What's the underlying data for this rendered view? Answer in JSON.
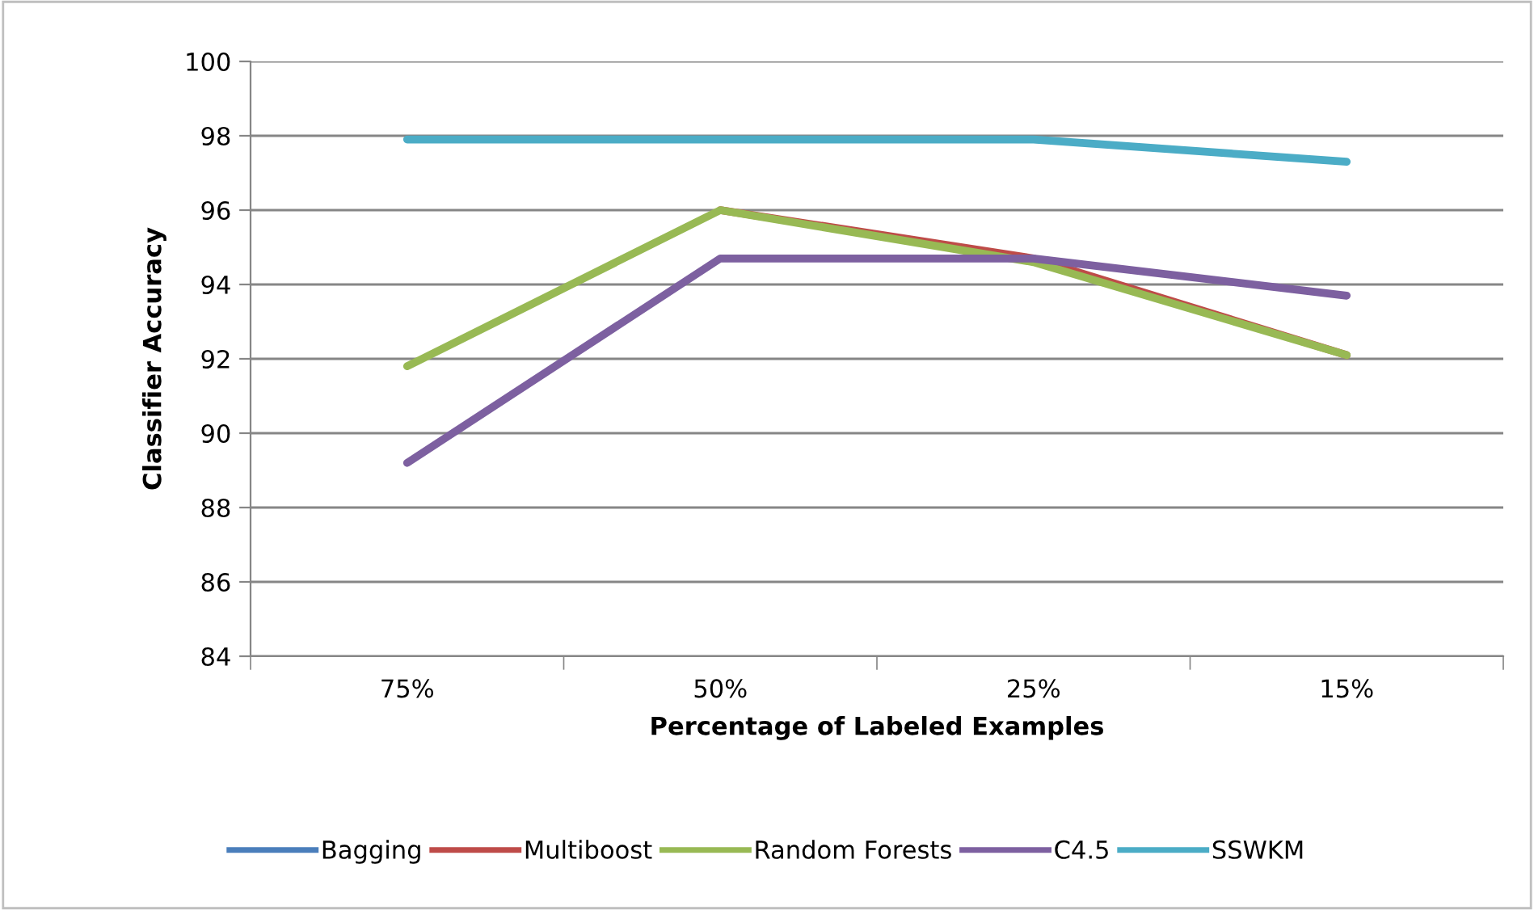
{
  "chart_data": {
    "type": "line",
    "xlabel": "Percentage of Labeled Examples",
    "ylabel": "Classifier Accuracy",
    "categories": [
      "75%",
      "50%",
      "25%",
      "15%"
    ],
    "series": [
      {
        "name": "Bagging",
        "color": "#4a7ebb",
        "values": [
          null,
          null,
          null,
          null
        ]
      },
      {
        "name": "Multiboost",
        "color": "#be4b48",
        "values": [
          null,
          96.0,
          94.7,
          92.1
        ]
      },
      {
        "name": "Random Forests",
        "color": "#98b954",
        "values": [
          91.8,
          96.0,
          94.6,
          92.1
        ]
      },
      {
        "name": "C4.5",
        "color": "#7d60a0",
        "values": [
          89.2,
          94.7,
          94.7,
          93.7
        ]
      },
      {
        "name": "SSWKM",
        "color": "#4bacc6",
        "values": [
          97.9,
          97.9,
          97.9,
          97.3
        ]
      }
    ],
    "ylim": [
      84,
      100
    ],
    "yticks": [
      84,
      86,
      88,
      90,
      92,
      94,
      96,
      98,
      100
    ],
    "grid": "y",
    "legend": "bottom"
  }
}
